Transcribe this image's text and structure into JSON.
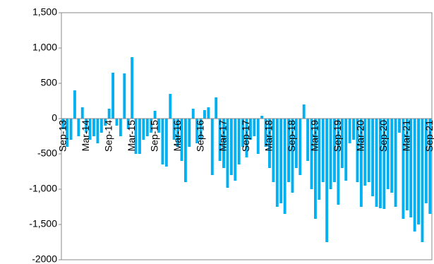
{
  "chart_data": {
    "type": "bar",
    "categories": [
      "Sep-13",
      null,
      null,
      null,
      null,
      null,
      "Mar-14",
      null,
      null,
      null,
      null,
      null,
      "Sep-14",
      null,
      null,
      null,
      null,
      null,
      "Mar-15",
      null,
      null,
      null,
      null,
      null,
      "Sep-15",
      null,
      null,
      null,
      null,
      null,
      "Mar-16",
      null,
      null,
      null,
      null,
      null,
      "Sep-16",
      null,
      null,
      null,
      null,
      null,
      "Mar-17",
      null,
      null,
      null,
      null,
      null,
      "Sep-17",
      null,
      null,
      null,
      null,
      null,
      "Mar-18",
      null,
      null,
      null,
      null,
      null,
      "Sep-18",
      null,
      null,
      null,
      null,
      null,
      "Mar-19",
      null,
      null,
      null,
      null,
      null,
      "Sep-19",
      null,
      null,
      null,
      null,
      null,
      "Mar-20",
      null,
      null,
      null,
      null,
      null,
      "Sep-20",
      null,
      null,
      null,
      null,
      null,
      "Mar-21",
      null,
      null,
      null,
      null,
      null,
      "Sep-21"
    ],
    "values": [
      -150,
      -400,
      -300,
      400,
      -250,
      160,
      -200,
      -300,
      -250,
      -350,
      -200,
      -100,
      140,
      650,
      -100,
      -250,
      640,
      -150,
      870,
      -500,
      -500,
      -300,
      -250,
      -200,
      110,
      -200,
      -650,
      -680,
      350,
      -300,
      -400,
      -600,
      -900,
      -400,
      140,
      -350,
      -300,
      120,
      160,
      -800,
      300,
      -600,
      -700,
      -980,
      -800,
      -880,
      -650,
      -400,
      -550,
      -300,
      -250,
      -500,
      40,
      -400,
      -700,
      -900,
      -1250,
      -1200,
      -1350,
      -900,
      -1050,
      -700,
      -800,
      200,
      -600,
      -1000,
      -1420,
      -1150,
      -900,
      -1750,
      -1000,
      -900,
      -1220,
      -700,
      -880,
      -350,
      -300,
      -900,
      -1250,
      -950,
      -900,
      -1100,
      -1250,
      -1270,
      -1280,
      -1000,
      -1050,
      -1250,
      -200,
      -1420,
      -1300,
      -1400,
      -1600,
      -1500,
      -1750,
      -1200,
      -1350
    ],
    "color": "#00b0f0",
    "ylim": [
      -2000,
      1500
    ],
    "yticks": [
      -2000,
      {
        "value": -1500,
        "label": "-1,500"
      },
      {
        "value": -1000,
        "label": "-1,000"
      },
      -500,
      0,
      500,
      {
        "value": 1000,
        "label": "1,000"
      },
      {
        "value": 1500,
        "label": "1,500"
      }
    ]
  }
}
